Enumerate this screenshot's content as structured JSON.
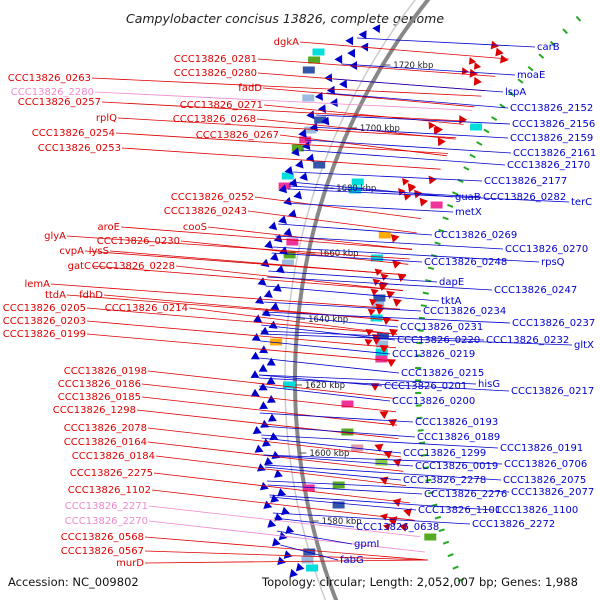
{
  "title": "Campylobacter concisus 13826, complete genome",
  "accession": "Accession: NC_009802",
  "topology": "Topology: circular; Length: 2,052,007 bp; Genes: 1,988",
  "colors": {
    "forward": "#dd0000",
    "reverse": "#0000cc",
    "pseudo": "#ee88cc",
    "backbone": "#888888",
    "tick": "#22aa22",
    "feature_palette": [
      "#00dddd",
      "#ee3399",
      "#55aa22",
      "#3355aa",
      "#99bbdd",
      "#dd99aa",
      "#ffaa00",
      "#88cc44"
    ]
  },
  "scale_marks": [
    {
      "label": "1720 kbp",
      "kbp": 1720
    },
    {
      "label": "1700 kbp",
      "kbp": 1700
    },
    {
      "label": "1680 kbp",
      "kbp": 1680
    },
    {
      "label": "1660 kbp",
      "kbp": 1660
    },
    {
      "label": "1640 kbp",
      "kbp": 1640
    },
    {
      "label": "1620 kbp",
      "kbp": 1620
    },
    {
      "label": "1600 kbp",
      "kbp": 1600
    },
    {
      "label": "1580 kbp",
      "kbp": 1580
    }
  ],
  "left_labels": [
    {
      "text": "dgkA",
      "color": "forward"
    },
    {
      "text": "CCC13826_0281",
      "color": "forward"
    },
    {
      "text": "CCC13826_0280",
      "color": "forward"
    },
    {
      "text": "CCC13826_0263",
      "color": "forward"
    },
    {
      "text": "CCC13826_2280",
      "color": "pseudo"
    },
    {
      "text": "fadD",
      "color": "forward"
    },
    {
      "text": "CCC13826_0257",
      "color": "forward"
    },
    {
      "text": "CCC13826_0271",
      "color": "forward"
    },
    {
      "text": "rplQ",
      "color": "forward"
    },
    {
      "text": "CCC13826_0268",
      "color": "forward"
    },
    {
      "text": "CCC13826_0254",
      "color": "forward"
    },
    {
      "text": "CCC13826_0267",
      "color": "forward"
    },
    {
      "text": "CCC13826_0253",
      "color": "forward"
    },
    {
      "text": "CCC13826_0252",
      "color": "forward"
    },
    {
      "text": "CCC13826_0243",
      "color": "forward"
    },
    {
      "text": "aroE",
      "color": "forward"
    },
    {
      "text": "cooS",
      "color": "forward"
    },
    {
      "text": "glyA",
      "color": "forward"
    },
    {
      "text": "CCC13826_0230",
      "color": "forward"
    },
    {
      "text": "cvpA",
      "color": "forward"
    },
    {
      "text": "lysS",
      "color": "forward"
    },
    {
      "text": "gatC",
      "color": "forward"
    },
    {
      "text": "CCC13826_0228",
      "color": "forward"
    },
    {
      "text": "lemA",
      "color": "forward"
    },
    {
      "text": "ttdA",
      "color": "forward"
    },
    {
      "text": "fdhD",
      "color": "forward"
    },
    {
      "text": "CCC13826_0205",
      "color": "forward"
    },
    {
      "text": "CCC13826_0214",
      "color": "forward"
    },
    {
      "text": "CCC13826_0203",
      "color": "forward"
    },
    {
      "text": "CCC13826_0199",
      "color": "forward"
    },
    {
      "text": "CCC13826_0198",
      "color": "forward"
    },
    {
      "text": "CCC13826_0186",
      "color": "forward"
    },
    {
      "text": "CCC13826_0185",
      "color": "forward"
    },
    {
      "text": "CCC13826_1298",
      "color": "forward"
    },
    {
      "text": "CCC13826_2078",
      "color": "forward"
    },
    {
      "text": "CCC13826_0164",
      "color": "forward"
    },
    {
      "text": "CCC13826_0184",
      "color": "forward"
    },
    {
      "text": "CCC13826_2275",
      "color": "forward"
    },
    {
      "text": "CCC13826_1102",
      "color": "forward"
    },
    {
      "text": "CCC13826_2271",
      "color": "pseudo"
    },
    {
      "text": "CCC13826_2270",
      "color": "pseudo"
    },
    {
      "text": "CCC13826_0568",
      "color": "forward"
    },
    {
      "text": "CCC13826_0567",
      "color": "forward"
    },
    {
      "text": "murD",
      "color": "forward"
    }
  ],
  "right_labels": [
    {
      "text": "carB"
    },
    {
      "text": "moaE"
    },
    {
      "text": "lspA"
    },
    {
      "text": "CCC13826_2152"
    },
    {
      "text": "CCC13826_2156"
    },
    {
      "text": "CCC13826_2159"
    },
    {
      "text": "CCC13826_2161"
    },
    {
      "text": "CCC13826_2170"
    },
    {
      "text": "CCC13826_2177"
    },
    {
      "text": "CCC13826_0282"
    },
    {
      "text": "terC"
    },
    {
      "text": "guaB"
    },
    {
      "text": "metX"
    },
    {
      "text": "CCC13826_0269"
    },
    {
      "text": "CCC13826_0270"
    },
    {
      "text": "rpsQ"
    },
    {
      "text": "CCC13826_0248"
    },
    {
      "text": "dapE"
    },
    {
      "text": "CCC13826_0247"
    },
    {
      "text": "tktA"
    },
    {
      "text": "CCC13826_0234"
    },
    {
      "text": "CCC13826_0237"
    },
    {
      "text": "CCC13826_0231"
    },
    {
      "text": "CCC13826_0220"
    },
    {
      "text": "CCC13826_0232"
    },
    {
      "text": "gltX"
    },
    {
      "text": "CCC13826_0219"
    },
    {
      "text": "CCC13826_0215"
    },
    {
      "text": "hisG"
    },
    {
      "text": "CCC13826_0201"
    },
    {
      "text": "CCC13826_0217"
    },
    {
      "text": "CCC13826_0200"
    },
    {
      "text": "CCC13826_0193"
    },
    {
      "text": "CCC13826_0189"
    },
    {
      "text": "CCC13826_0191"
    },
    {
      "text": "CCC13826_1299"
    },
    {
      "text": "CCC13826_0706"
    },
    {
      "text": "CCC13826_0019"
    },
    {
      "text": "CCC13826_2278"
    },
    {
      "text": "CCC13826_2075"
    },
    {
      "text": "CCC13826_2276"
    },
    {
      "text": "CCC13826_2077"
    },
    {
      "text": "CCC13826_1101"
    },
    {
      "text": "CCC13826_1100"
    },
    {
      "text": "CCC13826_0638"
    },
    {
      "text": "CCC13826_2272"
    },
    {
      "text": "gpmI"
    },
    {
      "text": "fabG"
    }
  ]
}
